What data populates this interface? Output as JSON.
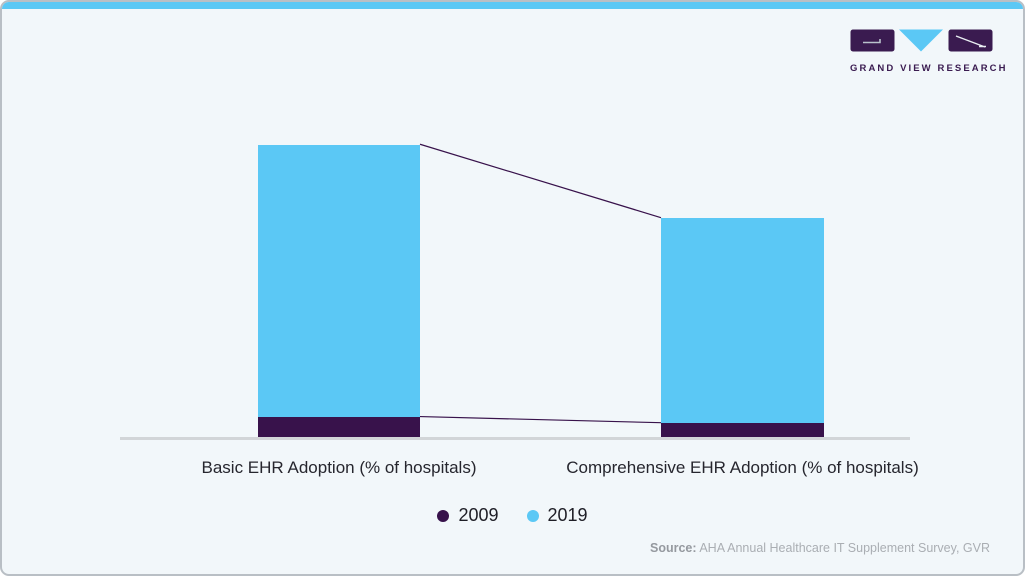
{
  "brand": {
    "wordmark": "GRAND VIEW RESEARCH"
  },
  "chart_data": {
    "type": "bar",
    "subtype": "stacked-vertical",
    "categories": [
      "Basic EHR Adoption (% of hospitals)",
      "Comprehensive EHR Adoption (% of hospitals)"
    ],
    "series": [
      {
        "name": "2009",
        "color": "#38124B",
        "values": [
          7,
          5
        ]
      },
      {
        "name": "2019",
        "color": "#5BC8F5",
        "values": [
          89,
          67
        ]
      }
    ],
    "ylim": [
      0,
      100
    ],
    "grid": false,
    "axis_labels_shown": false,
    "legend_position": "bottom-center",
    "connector_lines_between_bars": true,
    "values_note": "no numeric data labels shown in image; values estimated from bar pixel heights"
  },
  "source": {
    "label": "Source:",
    "text": " AHA Annual Healthcare IT Supplement Survey, GVR"
  },
  "colors": {
    "background": "#f2f7fa",
    "card_border": "#b9bfc5",
    "top_strip": "#5BC8F5",
    "axis": "#d2d5d8",
    "series_2009": "#38124B",
    "series_2019": "#5BC8F5",
    "logo_purple": "#3a1b50",
    "label_text": "#26262e",
    "source_text": "#aaaeb3"
  }
}
